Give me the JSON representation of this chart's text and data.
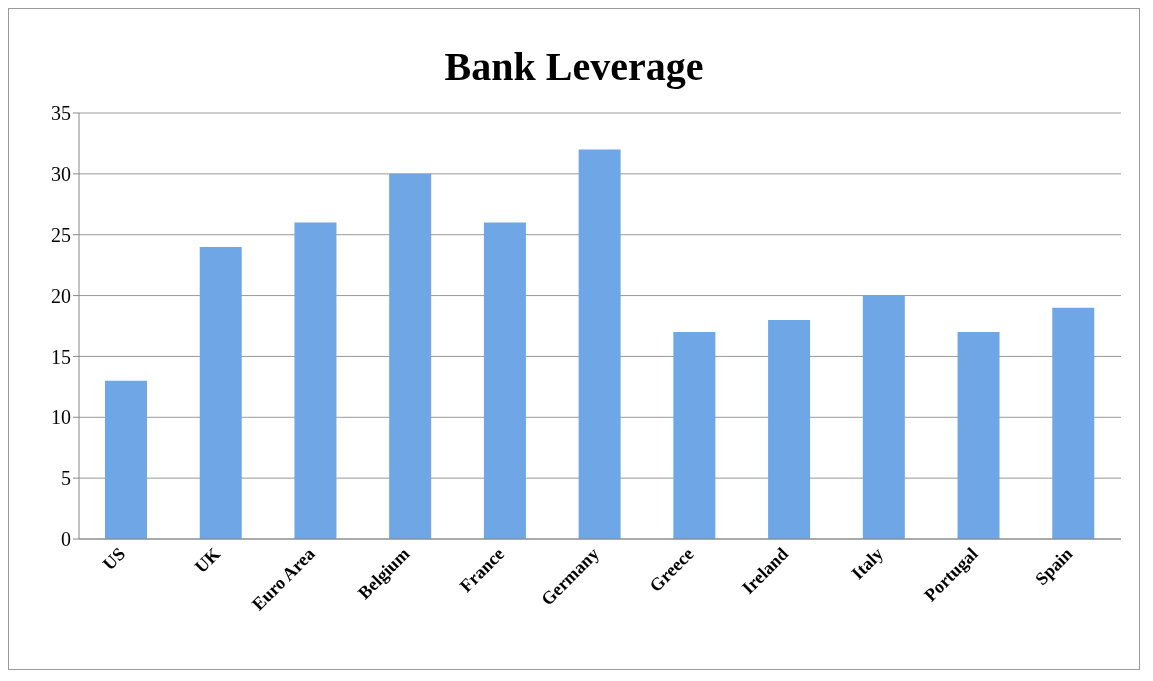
{
  "chart_data": {
    "type": "bar",
    "title": "Bank Leverage",
    "categories": [
      "US",
      "UK",
      "Euro Area",
      "Belgium",
      "France",
      "Germany",
      "Greece",
      "Ireland",
      "Italy",
      "Portugal",
      "Spain"
    ],
    "values": [
      13,
      24,
      26,
      30,
      26,
      32,
      17,
      18,
      20,
      17,
      19
    ],
    "color": "#6fa6e6",
    "ylim": [
      0,
      35
    ],
    "yticks": [
      0,
      5,
      10,
      15,
      20,
      25,
      30,
      35
    ],
    "grid": "y"
  }
}
